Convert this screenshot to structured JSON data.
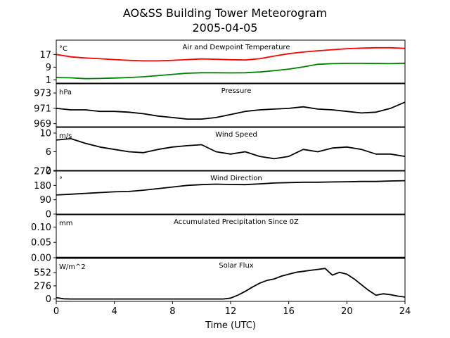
{
  "figure": {
    "title_line1": "AO&SS Building Tower Meteorogram",
    "title_line2": "2005-04-05",
    "xlabel": "Time (UTC)",
    "x_ticks": [
      "0",
      "4",
      "8",
      "12",
      "16",
      "20",
      "24"
    ],
    "xlim": [
      0,
      24
    ]
  },
  "chart_data": [
    {
      "type": "line",
      "title": "Air and Dewpoint Temperature",
      "unit": "°C",
      "ylim": [
        -1,
        26
      ],
      "y_ticks": [
        1,
        9,
        17
      ],
      "series": [
        {
          "color": "#ff0000",
          "x": [
            0,
            1,
            2,
            3,
            4,
            5,
            6,
            7,
            8,
            9,
            10,
            11,
            12,
            13,
            14,
            15,
            16,
            17,
            18,
            19,
            20,
            21,
            22,
            23,
            24
          ],
          "y": [
            17,
            15.5,
            14.8,
            14.3,
            13.8,
            13.3,
            13.0,
            13.0,
            13.3,
            13.8,
            14.2,
            14.0,
            13.7,
            13.5,
            14.3,
            16.0,
            17.5,
            18.5,
            19.3,
            20.0,
            20.6,
            21.0,
            21.2,
            21.2,
            20.8
          ]
        },
        {
          "color": "#008000",
          "x": [
            0,
            1,
            2,
            3,
            4,
            5,
            6,
            7,
            8,
            9,
            10,
            11,
            12,
            13,
            14,
            15,
            16,
            17,
            18,
            19,
            20,
            21,
            22,
            23,
            24
          ],
          "y": [
            2.5,
            2.3,
            1.8,
            1.9,
            2.2,
            2.5,
            3.0,
            3.7,
            4.5,
            5.2,
            5.5,
            5.5,
            5.4,
            5.5,
            6.0,
            6.8,
            7.8,
            9.2,
            10.8,
            11.2,
            11.4,
            11.4,
            11.3,
            11.2,
            11.5
          ]
        }
      ]
    },
    {
      "type": "line",
      "title": "Pressure",
      "unit": "hPa",
      "ylim": [
        968.6,
        974.2
      ],
      "y_ticks": [
        969,
        971,
        973
      ],
      "series": [
        {
          "color": "#000000",
          "x": [
            0,
            1,
            2,
            3,
            4,
            5,
            6,
            7,
            8,
            9,
            10,
            11,
            12,
            13,
            14,
            15,
            16,
            17,
            18,
            19,
            20,
            21,
            22,
            23,
            24
          ],
          "y": [
            971.0,
            970.8,
            970.8,
            970.6,
            970.6,
            970.5,
            970.3,
            970.0,
            969.8,
            969.6,
            969.6,
            969.8,
            970.2,
            970.6,
            970.8,
            970.9,
            971.0,
            971.2,
            970.9,
            970.8,
            970.6,
            970.4,
            970.5,
            971.0,
            971.8
          ]
        }
      ]
    },
    {
      "type": "line",
      "title": "Wind Speed",
      "unit": "m/s",
      "ylim": [
        2,
        11.2
      ],
      "y_ticks": [
        2,
        6,
        10
      ],
      "series": [
        {
          "color": "#000000",
          "x": [
            0,
            1,
            2,
            3,
            4,
            5,
            6,
            7,
            8,
            9,
            10,
            11,
            12,
            13,
            14,
            15,
            16,
            17,
            18,
            19,
            20,
            21,
            22,
            23,
            24
          ],
          "y": [
            8.5,
            8.8,
            7.8,
            7.0,
            6.5,
            6.0,
            5.8,
            6.5,
            7.0,
            7.3,
            7.5,
            6.0,
            5.5,
            6.0,
            5.0,
            4.5,
            5.0,
            6.5,
            6.0,
            6.8,
            7.0,
            6.5,
            5.5,
            5.5,
            5.0
          ]
        }
      ]
    },
    {
      "type": "line",
      "title": "Wind Direction",
      "unit": "°",
      "ylim": [
        0,
        270
      ],
      "y_ticks": [
        0,
        90,
        180,
        270
      ],
      "series": [
        {
          "color": "#000000",
          "x": [
            0,
            1,
            2,
            3,
            4,
            5,
            6,
            7,
            8,
            9,
            10,
            11,
            12,
            13,
            14,
            15,
            16,
            17,
            18,
            19,
            20,
            21,
            22,
            23,
            24
          ],
          "y": [
            120,
            125,
            130,
            135,
            140,
            142,
            150,
            160,
            170,
            180,
            185,
            188,
            186,
            185,
            190,
            195,
            198,
            200,
            200,
            202,
            203,
            205,
            205,
            208,
            210
          ]
        }
      ]
    },
    {
      "type": "line",
      "title": "Accumulated Precipitation Since 0Z",
      "unit": "mm",
      "ylim": [
        0,
        0.14
      ],
      "y_ticks": [
        0.0,
        0.05,
        0.1
      ],
      "y_tick_labels": [
        "0.00",
        "0.05",
        "0.10"
      ],
      "series": [
        {
          "color": "#000000",
          "x": [
            0,
            24
          ],
          "y": [
            0,
            0
          ]
        }
      ]
    },
    {
      "type": "line",
      "title": "Solar Flux",
      "unit": "W/m^2",
      "ylim": [
        -50,
        850
      ],
      "y_ticks": [
        0,
        276,
        552
      ],
      "series": [
        {
          "color": "#000000",
          "x": [
            0,
            0.5,
            1,
            2,
            4,
            6,
            8,
            10,
            11.5,
            12,
            12.5,
            13,
            13.5,
            14,
            14.5,
            15,
            15.5,
            16,
            16.5,
            17,
            17.5,
            18,
            18.5,
            19,
            19.5,
            20,
            20.5,
            21,
            21.5,
            22,
            22.5,
            23,
            23.5,
            24
          ],
          "y": [
            30,
            5,
            0,
            0,
            0,
            0,
            0,
            0,
            0,
            20,
            80,
            160,
            250,
            330,
            390,
            420,
            480,
            520,
            560,
            580,
            600,
            620,
            640,
            500,
            560,
            520,
            420,
            300,
            180,
            80,
            110,
            90,
            60,
            40
          ]
        }
      ]
    }
  ]
}
